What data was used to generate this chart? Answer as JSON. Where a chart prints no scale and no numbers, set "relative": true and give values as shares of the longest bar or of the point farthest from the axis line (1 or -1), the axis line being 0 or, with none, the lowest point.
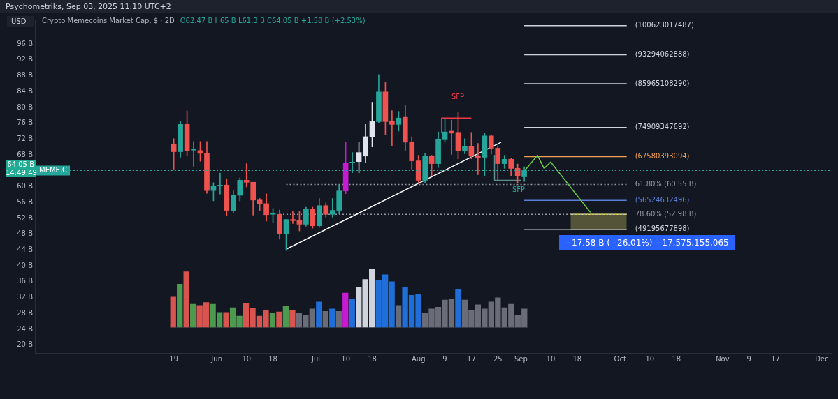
{
  "chart_data": [
    {
      "type": "candlestick",
      "title": "Crypto Memecoins Market Cap, $ · 2D",
      "subtitle": "O62.47 B  H65 B  L61.3 B  C64.05 B  +1.58 B (+2.53%)",
      "ylabel": "USD",
      "x": [
        "2025-05-19",
        "2025-05-21",
        "2025-05-23",
        "2025-05-25",
        "2025-05-27",
        "2025-05-29",
        "2025-05-31",
        "2025-06-02",
        "2025-06-04",
        "2025-06-06",
        "2025-06-08",
        "2025-06-10",
        "2025-06-12",
        "2025-06-14",
        "2025-06-16",
        "2025-06-18",
        "2025-06-20",
        "2025-06-22",
        "2025-06-24",
        "2025-06-26",
        "2025-06-28",
        "2025-06-30",
        "2025-07-02",
        "2025-07-04",
        "2025-07-06",
        "2025-07-08",
        "2025-07-10",
        "2025-07-12",
        "2025-07-14",
        "2025-07-16",
        "2025-07-18",
        "2025-07-20",
        "2025-07-22",
        "2025-07-24",
        "2025-07-26",
        "2025-07-28",
        "2025-07-30",
        "2025-08-01",
        "2025-08-03",
        "2025-08-05",
        "2025-08-07",
        "2025-08-09",
        "2025-08-11",
        "2025-08-13",
        "2025-08-15",
        "2025-08-17",
        "2025-08-19",
        "2025-08-21",
        "2025-08-23",
        "2025-08-25",
        "2025-08-27",
        "2025-08-29",
        "2025-08-31",
        "2025-09-02"
      ],
      "ohlc": [
        [
          70.7,
          72.1,
          64.4,
          68.8
        ],
        [
          68.8,
          76.4,
          67.4,
          75.7
        ],
        [
          75.7,
          79.1,
          67.9,
          69.0
        ],
        [
          69.2,
          71.4,
          65.1,
          69.3
        ],
        [
          69.1,
          71.4,
          66.4,
          68.4
        ],
        [
          68.4,
          71.4,
          58.3,
          59.0
        ],
        [
          59.0,
          61.0,
          56.4,
          60.1
        ],
        [
          60.2,
          63.4,
          58.1,
          60.3
        ],
        [
          60.4,
          62.0,
          52.6,
          54.0
        ],
        [
          53.8,
          59.0,
          53.3,
          57.8
        ],
        [
          57.8,
          62.2,
          56.4,
          61.6
        ],
        [
          61.6,
          65.8,
          59.9,
          61.1
        ],
        [
          61.1,
          61.1,
          52.8,
          56.6
        ],
        [
          56.6,
          57.0,
          53.9,
          55.6
        ],
        [
          55.7,
          58.2,
          51.3,
          52.9
        ],
        [
          53.0,
          54.5,
          51.0,
          53.1
        ],
        [
          53.0,
          54.1,
          46.7,
          48.0
        ],
        [
          48.0,
          51.7,
          43.9,
          51.7
        ],
        [
          51.7,
          53.8,
          50.7,
          51.4
        ],
        [
          51.5,
          53.8,
          48.8,
          50.5
        ],
        [
          50.5,
          54.8,
          50.0,
          54.3
        ],
        [
          54.3,
          54.8,
          49.5,
          50.1
        ],
        [
          50.1,
          57.0,
          49.7,
          55.2
        ],
        [
          55.2,
          55.9,
          52.3,
          53.0
        ],
        [
          53.0,
          57.0,
          52.3,
          54.0
        ],
        [
          54.0,
          60.4,
          53.1,
          58.9
        ],
        [
          58.9,
          71.2,
          58.2,
          66.0
        ],
        [
          66.0,
          68.6,
          63.5,
          66.2
        ],
        [
          66.3,
          71.2,
          63.5,
          68.6
        ],
        [
          67.7,
          75.7,
          66.0,
          72.6
        ],
        [
          72.6,
          81.3,
          70.0,
          76.4
        ],
        [
          76.4,
          88.3,
          76.1,
          83.9
        ],
        [
          83.9,
          86.4,
          73.0,
          76.4
        ],
        [
          76.6,
          79.2,
          70.3,
          75.7
        ],
        [
          75.7,
          79.0,
          74.0,
          77.3
        ],
        [
          77.5,
          80.5,
          69.1,
          71.2
        ],
        [
          71.2,
          72.6,
          64.4,
          66.5
        ],
        [
          66.5,
          67.9,
          60.8,
          61.6
        ],
        [
          61.6,
          68.3,
          61.0,
          67.7
        ],
        [
          67.7,
          67.9,
          62.6,
          65.8
        ],
        [
          65.8,
          73.8,
          64.8,
          72.0
        ],
        [
          72.0,
          77.3,
          71.2,
          73.8
        ],
        [
          74.0,
          76.8,
          68.1,
          73.5
        ],
        [
          73.7,
          78.7,
          67.0,
          69.1
        ],
        [
          69.1,
          72.1,
          68.3,
          70.1
        ],
        [
          70.1,
          73.7,
          67.0,
          67.7
        ],
        [
          67.7,
          70.9,
          63.0,
          67.2
        ],
        [
          67.4,
          73.5,
          62.8,
          72.8
        ],
        [
          72.8,
          73.1,
          68.2,
          69.7
        ],
        [
          69.7,
          70.3,
          61.6,
          65.8
        ],
        [
          65.8,
          67.9,
          64.6,
          66.9
        ],
        [
          66.9,
          67.2,
          62.6,
          64.6
        ],
        [
          64.6,
          65.7,
          61.0,
          62.7
        ],
        [
          62.47,
          65,
          61.3,
          64.05
        ]
      ],
      "colors": [
        "#f0534f",
        "#26a69a",
        "#f0534f",
        "#26a69a",
        "#f0534f",
        "#f0534f",
        "#26a69a",
        "#26a69a",
        "#f0534f",
        "#26a69a",
        "#26a69a",
        "#f0534f",
        "#f0534f",
        "#f0534f",
        "#f0534f",
        "#26a69a",
        "#f0534f",
        "#26a69a",
        "#f0534f",
        "#f0534f",
        "#26a69a",
        "#f0534f",
        "#26a69a",
        "#f0534f",
        "#26a69a",
        "#26a69a",
        "#c51bd1",
        "#26a69a",
        "#e0e3eb",
        "#e0e3eb",
        "#e0e3eb",
        "#26a69a",
        "#f0534f",
        "#f0534f",
        "#26a69a",
        "#f0534f",
        "#f0534f",
        "#f0534f",
        "#26a69a",
        "#f0534f",
        "#26a69a",
        "#26a69a",
        "#f0534f",
        "#f0534f",
        "#26a69a",
        "#f0534f",
        "#f0534f",
        "#26a69a",
        "#f0534f",
        "#f0534f",
        "#26a69a",
        "#f0534f",
        "#f0534f",
        "#26a69a"
      ],
      "series": [
        {
          "type": "line",
          "color": "#ffffff",
          "x": [
            "2025-06-22",
            "2025-08-26"
          ],
          "values": [
            44.2,
            71.2
          ]
        },
        {
          "type": "line",
          "color": "#f23645",
          "x": [
            "2025-08-08",
            "2025-08-08",
            "2025-08-17"
          ],
          "values": [
            73.6,
            77.3,
            77.3
          ]
        },
        {
          "type": "line",
          "color": "#5d8f8c",
          "x": [
            "2025-08-24",
            "2025-08-24",
            "2025-09-01"
          ],
          "values": [
            67.9,
            61.6,
            61.6
          ]
        },
        {
          "type": "line",
          "color": "#6fcf4a",
          "x": [
            "2025-09-02",
            "2025-09-06",
            "2025-09-08",
            "2025-09-10",
            "2025-09-22"
          ],
          "values": [
            63.9,
            67.9,
            64.6,
            66.2,
            53.5
          ]
        },
        {
          "type": "line",
          "name": "(100623017487)",
          "color": "#d1d4dc",
          "x": [
            "2025-09-02",
            "2025-10-03"
          ],
          "values": [
            100.62,
            100.62
          ]
        },
        {
          "type": "line",
          "name": "(93294062888)",
          "color": "#d1d4dc",
          "x": [
            "2025-09-02",
            "2025-10-03"
          ],
          "values": [
            93.29,
            93.29
          ]
        },
        {
          "type": "line",
          "name": "(85965108290)",
          "color": "#d1d4dc",
          "x": [
            "2025-09-02",
            "2025-10-03"
          ],
          "values": [
            85.97,
            85.97
          ]
        },
        {
          "type": "line",
          "name": "(74909347692)",
          "color": "#d1d4dc",
          "x": [
            "2025-09-02",
            "2025-10-03"
          ],
          "values": [
            74.91,
            74.91
          ]
        },
        {
          "type": "line",
          "name": "(67580393094)",
          "color": "#f0a050",
          "x": [
            "2025-09-02",
            "2025-10-03"
          ],
          "values": [
            67.58,
            67.58
          ]
        },
        {
          "type": "line",
          "name": "61.80% (60.55 B)",
          "color": "#9598a1",
          "line_style": "dotted",
          "x": [
            "2025-06-22",
            "2025-10-03"
          ],
          "values": [
            60.55,
            60.55
          ]
        },
        {
          "type": "line",
          "name": "(56524632496)",
          "color": "#5b7fd6",
          "x": [
            "2025-09-02",
            "2025-10-03"
          ],
          "values": [
            56.52,
            56.52
          ]
        },
        {
          "type": "line",
          "name": "78.60% (52.98 B)",
          "color": "#9598a1",
          "line_style": "dotted",
          "x": [
            "2025-06-20",
            "2025-10-03"
          ],
          "values": [
            52.98,
            52.98
          ]
        },
        {
          "type": "line",
          "name": "(49195677898)",
          "color": "#d1d4dc",
          "x": [
            "2025-09-02",
            "2025-10-03"
          ],
          "values": [
            49.2,
            49.2
          ]
        },
        {
          "type": "line",
          "color": "#e8e36a",
          "x": [
            "2025-09-16",
            "2025-10-03"
          ],
          "values": [
            52.98,
            52.98
          ],
          "lower": [
            49.2,
            49.2
          ],
          "upper": [
            52.98,
            52.98
          ]
        }
      ],
      "ref_lines": [
        {
          "axis": "y",
          "value": 64.05,
          "label": "MEME.C",
          "color": "#26a69a",
          "line_style": "dotted"
        }
      ],
      "annotations": [
        "Psychometriks, Sep 03, 2025 11:10 UTC+2",
        "64.05 B",
        "14:49:49",
        "−17.58 B (−26.01%) −17,575,155,065",
        "SFP",
        "SFP"
      ],
      "xlim": [
        "2025-04-07",
        "2025-12-04"
      ],
      "xticks": [
        {
          "value": "2025-05-19",
          "label": "19"
        },
        {
          "value": "2025-06-01",
          "label": "Jun"
        },
        {
          "value": "2025-06-10",
          "label": "10"
        },
        {
          "value": "2025-06-18",
          "label": "18"
        },
        {
          "value": "2025-07-01",
          "label": "Jul"
        },
        {
          "value": "2025-07-10",
          "label": "10"
        },
        {
          "value": "2025-07-18",
          "label": "18"
        },
        {
          "value": "2025-08-01",
          "label": "Aug"
        },
        {
          "value": "2025-08-09",
          "label": "9"
        },
        {
          "value": "2025-08-17",
          "label": "17"
        },
        {
          "value": "2025-08-25",
          "label": "25"
        },
        {
          "value": "2025-09-01",
          "label": "Sep"
        },
        {
          "value": "2025-09-10",
          "label": "10"
        },
        {
          "value": "2025-09-18",
          "label": "18"
        },
        {
          "value": "2025-10-01",
          "label": "Oct"
        },
        {
          "value": "2025-10-10",
          "label": "10"
        },
        {
          "value": "2025-10-18",
          "label": "18"
        },
        {
          "value": "2025-11-01",
          "label": "Nov"
        },
        {
          "value": "2025-11-09",
          "label": "9"
        },
        {
          "value": "2025-11-17",
          "label": "17"
        },
        {
          "value": "2025-12-01",
          "label": "Dec"
        }
      ],
      "ylim": [
        18,
        102
      ],
      "yticks": [
        {
          "value": 20,
          "label": "20 B"
        },
        {
          "value": 24,
          "label": "24 B"
        },
        {
          "value": 28,
          "label": "28 B"
        },
        {
          "value": 32,
          "label": "32 B"
        },
        {
          "value": 36,
          "label": "36 B"
        },
        {
          "value": 40,
          "label": "40 B"
        },
        {
          "value": 44,
          "label": "44 B"
        },
        {
          "value": 48,
          "label": "48 B"
        },
        {
          "value": 52,
          "label": "52 B"
        },
        {
          "value": 56,
          "label": "56 B"
        },
        {
          "value": 60,
          "label": "60 B"
        },
        {
          "value": 68,
          "label": "68 B"
        },
        {
          "value": 72,
          "label": "72 B"
        },
        {
          "value": 76,
          "label": "76 B"
        },
        {
          "value": 80,
          "label": "80 B"
        },
        {
          "value": 84,
          "label": "84 B"
        },
        {
          "value": 88,
          "label": "88 B"
        },
        {
          "value": 92,
          "label": "92 B"
        },
        {
          "value": 96,
          "label": "96 B"
        }
      ]
    },
    {
      "type": "bar",
      "relative": true,
      "categories": [
        null,
        null,
        null,
        null,
        null,
        null,
        null,
        null,
        null,
        null,
        null,
        null,
        null,
        null,
        null,
        null,
        null,
        null,
        null,
        null,
        null,
        null,
        null,
        null,
        null,
        null,
        null,
        null,
        null,
        null,
        null,
        null,
        null,
        null,
        null,
        null,
        null,
        null,
        null,
        null,
        null,
        null,
        null,
        null,
        null,
        null,
        null,
        null,
        null,
        null,
        null,
        null,
        null,
        null
      ],
      "values": [
        0.52,
        0.74,
        0.95,
        0.4,
        0.38,
        0.43,
        0.4,
        0.26,
        0.26,
        0.34,
        0.2,
        0.41,
        0.33,
        0.2,
        0.3,
        0.25,
        0.27,
        0.37,
        0.3,
        0.25,
        0.22,
        0.32,
        0.44,
        0.28,
        0.32,
        0.28,
        0.59,
        0.48,
        0.69,
        0.82,
        1,
        0.8,
        0.9,
        0.78,
        0.38,
        0.68,
        0.55,
        0.57,
        0.25,
        0.32,
        0.35,
        0.47,
        0.49,
        0.65,
        0.47,
        0.29,
        0.39,
        0.32,
        0.44,
        0.51,
        0.34,
        0.4,
        0.21,
        0.32
      ],
      "colors": [
        "#d9534f",
        "#4b9a4f",
        "#d9534f",
        "#4b9a4f",
        "#d9534f",
        "#d9534f",
        "#4b9a4f",
        "#4b9a4f",
        "#d9534f",
        "#4b9a4f",
        "#4b9a4f",
        "#d9534f",
        "#d9534f",
        "#d9534f",
        "#d9534f",
        "#4b9a4f",
        "#d9534f",
        "#4b9a4f",
        "#d9534f",
        "#6a6d78",
        "#6a6d78",
        "#6a6d78",
        "#1e6fd9",
        "#6a6d78",
        "#1e6fd9",
        "#6a6d78",
        "#c51bd1",
        "#1e6fd9",
        "#d1d4dc",
        "#d1d4dc",
        "#d1d4dc",
        "#1e6fd9",
        "#1e6fd9",
        "#1e6fd9",
        "#6a6d78",
        "#1e6fd9",
        "#1e6fd9",
        "#1e6fd9",
        "#6a6d78",
        "#6a6d78",
        "#6a6d78",
        "#6a6d78",
        "#6a6d78",
        "#1e6fd9",
        "#6a6d78",
        "#6a6d78",
        "#6a6d78",
        "#6a6d78",
        "#6a6d78",
        "#6a6d78",
        "#6a6d78",
        "#6a6d78",
        "#6a6d78",
        "#6a6d78"
      ]
    }
  ]
}
